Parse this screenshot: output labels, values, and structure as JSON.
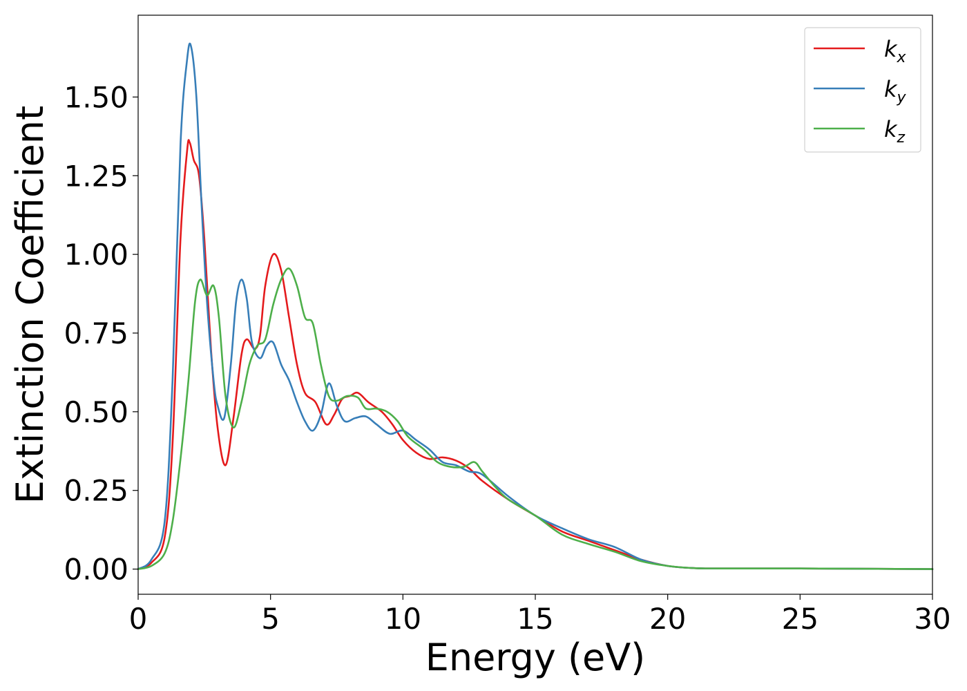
{
  "chart_data": {
    "type": "line",
    "title": "",
    "xlabel": "Energy (eV)",
    "ylabel": "Extinction Coefficient",
    "xlim": [
      0,
      30
    ],
    "ylim": [
      -0.08,
      1.76
    ],
    "xticks": [
      0,
      5,
      10,
      15,
      20,
      25,
      30
    ],
    "xtick_labels": [
      "0",
      "5",
      "10",
      "15",
      "20",
      "25",
      "30"
    ],
    "yticks": [
      0,
      0.25,
      0.5,
      0.75,
      1.0,
      1.25,
      1.5
    ],
    "ytick_labels": [
      "0.00",
      "0.25",
      "0.50",
      "0.75",
      "1.00",
      "1.25",
      "1.50"
    ],
    "grid": false,
    "legend_position": "top-right",
    "series": [
      {
        "name": "k_x",
        "label_main": "k",
        "label_sub": "x",
        "color": "#e41a1c",
        "points": [
          [
            0,
            0
          ],
          [
            0.5,
            0.02
          ],
          [
            1.0,
            0.1
          ],
          [
            1.3,
            0.4
          ],
          [
            1.6,
            1.05
          ],
          [
            1.85,
            1.33
          ],
          [
            1.95,
            1.355
          ],
          [
            2.1,
            1.3
          ],
          [
            2.3,
            1.25
          ],
          [
            2.5,
            1.05
          ],
          [
            2.75,
            0.7
          ],
          [
            3.0,
            0.45
          ],
          [
            3.3,
            0.33
          ],
          [
            3.6,
            0.48
          ],
          [
            3.9,
            0.68
          ],
          [
            4.1,
            0.73
          ],
          [
            4.4,
            0.7
          ],
          [
            4.6,
            0.74
          ],
          [
            4.8,
            0.9
          ],
          [
            5.1,
            1.0
          ],
          [
            5.4,
            0.95
          ],
          [
            5.7,
            0.8
          ],
          [
            6.0,
            0.65
          ],
          [
            6.3,
            0.56
          ],
          [
            6.7,
            0.53
          ],
          [
            7.1,
            0.46
          ],
          [
            7.4,
            0.49
          ],
          [
            7.7,
            0.54
          ],
          [
            8.0,
            0.55
          ],
          [
            8.3,
            0.56
          ],
          [
            8.7,
            0.53
          ],
          [
            9.2,
            0.5
          ],
          [
            9.6,
            0.46
          ],
          [
            10.0,
            0.41
          ],
          [
            10.5,
            0.37
          ],
          [
            11.0,
            0.35
          ],
          [
            11.5,
            0.355
          ],
          [
            12.0,
            0.345
          ],
          [
            12.5,
            0.32
          ],
          [
            13.0,
            0.28
          ],
          [
            14.0,
            0.22
          ],
          [
            15.0,
            0.17
          ],
          [
            16.0,
            0.12
          ],
          [
            17.0,
            0.09
          ],
          [
            18.0,
            0.06
          ],
          [
            19.0,
            0.03
          ],
          [
            20.0,
            0.01
          ],
          [
            21.0,
            0.003
          ],
          [
            22.0,
            0.002
          ],
          [
            25.0,
            0.002
          ],
          [
            30.0,
            0.0
          ]
        ]
      },
      {
        "name": "k_y",
        "label_main": "k",
        "label_sub": "y",
        "color": "#377eb8",
        "points": [
          [
            0,
            0
          ],
          [
            0.5,
            0.03
          ],
          [
            1.0,
            0.15
          ],
          [
            1.3,
            0.6
          ],
          [
            1.6,
            1.35
          ],
          [
            1.85,
            1.62
          ],
          [
            2.0,
            1.66
          ],
          [
            2.2,
            1.5
          ],
          [
            2.4,
            1.15
          ],
          [
            2.6,
            0.85
          ],
          [
            2.85,
            0.6
          ],
          [
            3.0,
            0.52
          ],
          [
            3.25,
            0.48
          ],
          [
            3.5,
            0.65
          ],
          [
            3.7,
            0.85
          ],
          [
            3.9,
            0.92
          ],
          [
            4.1,
            0.86
          ],
          [
            4.3,
            0.72
          ],
          [
            4.6,
            0.67
          ],
          [
            4.85,
            0.71
          ],
          [
            5.1,
            0.72
          ],
          [
            5.4,
            0.65
          ],
          [
            5.7,
            0.6
          ],
          [
            6.0,
            0.53
          ],
          [
            6.3,
            0.47
          ],
          [
            6.6,
            0.44
          ],
          [
            6.9,
            0.49
          ],
          [
            7.2,
            0.59
          ],
          [
            7.5,
            0.52
          ],
          [
            7.8,
            0.47
          ],
          [
            8.2,
            0.48
          ],
          [
            8.6,
            0.485
          ],
          [
            9.0,
            0.46
          ],
          [
            9.5,
            0.43
          ],
          [
            10.0,
            0.44
          ],
          [
            10.5,
            0.41
          ],
          [
            11.0,
            0.38
          ],
          [
            11.5,
            0.34
          ],
          [
            12.0,
            0.33
          ],
          [
            12.5,
            0.31
          ],
          [
            13.0,
            0.3
          ],
          [
            14.0,
            0.23
          ],
          [
            15.0,
            0.17
          ],
          [
            16.0,
            0.13
          ],
          [
            17.0,
            0.095
          ],
          [
            18.0,
            0.07
          ],
          [
            19.0,
            0.03
          ],
          [
            20.0,
            0.01
          ],
          [
            21.0,
            0.003
          ],
          [
            22.0,
            0.002
          ],
          [
            25.0,
            0.002
          ],
          [
            30.0,
            0.0
          ]
        ]
      },
      {
        "name": "k_z",
        "label_main": "k",
        "label_sub": "z",
        "color": "#4daf4a",
        "points": [
          [
            0,
            0
          ],
          [
            0.5,
            0.01
          ],
          [
            1.0,
            0.05
          ],
          [
            1.3,
            0.15
          ],
          [
            1.6,
            0.35
          ],
          [
            1.9,
            0.6
          ],
          [
            2.15,
            0.85
          ],
          [
            2.35,
            0.92
          ],
          [
            2.6,
            0.87
          ],
          [
            2.85,
            0.9
          ],
          [
            3.05,
            0.8
          ],
          [
            3.3,
            0.55
          ],
          [
            3.6,
            0.45
          ],
          [
            3.9,
            0.53
          ],
          [
            4.2,
            0.65
          ],
          [
            4.5,
            0.71
          ],
          [
            4.8,
            0.73
          ],
          [
            5.1,
            0.84
          ],
          [
            5.4,
            0.92
          ],
          [
            5.7,
            0.955
          ],
          [
            6.0,
            0.9
          ],
          [
            6.3,
            0.8
          ],
          [
            6.6,
            0.78
          ],
          [
            6.9,
            0.65
          ],
          [
            7.2,
            0.55
          ],
          [
            7.5,
            0.535
          ],
          [
            7.9,
            0.55
          ],
          [
            8.3,
            0.545
          ],
          [
            8.6,
            0.51
          ],
          [
            9.0,
            0.51
          ],
          [
            9.4,
            0.5
          ],
          [
            9.8,
            0.47
          ],
          [
            10.2,
            0.42
          ],
          [
            10.8,
            0.38
          ],
          [
            11.3,
            0.34
          ],
          [
            11.8,
            0.325
          ],
          [
            12.3,
            0.325
          ],
          [
            12.7,
            0.34
          ],
          [
            13.0,
            0.31
          ],
          [
            13.5,
            0.26
          ],
          [
            14.0,
            0.22
          ],
          [
            15.0,
            0.17
          ],
          [
            16.0,
            0.11
          ],
          [
            17.0,
            0.08
          ],
          [
            18.0,
            0.055
          ],
          [
            19.0,
            0.025
          ],
          [
            20.0,
            0.01
          ],
          [
            21.0,
            0.003
          ],
          [
            22.0,
            0.002
          ],
          [
            25.0,
            0.002
          ],
          [
            30.0,
            0.0
          ]
        ]
      }
    ]
  }
}
